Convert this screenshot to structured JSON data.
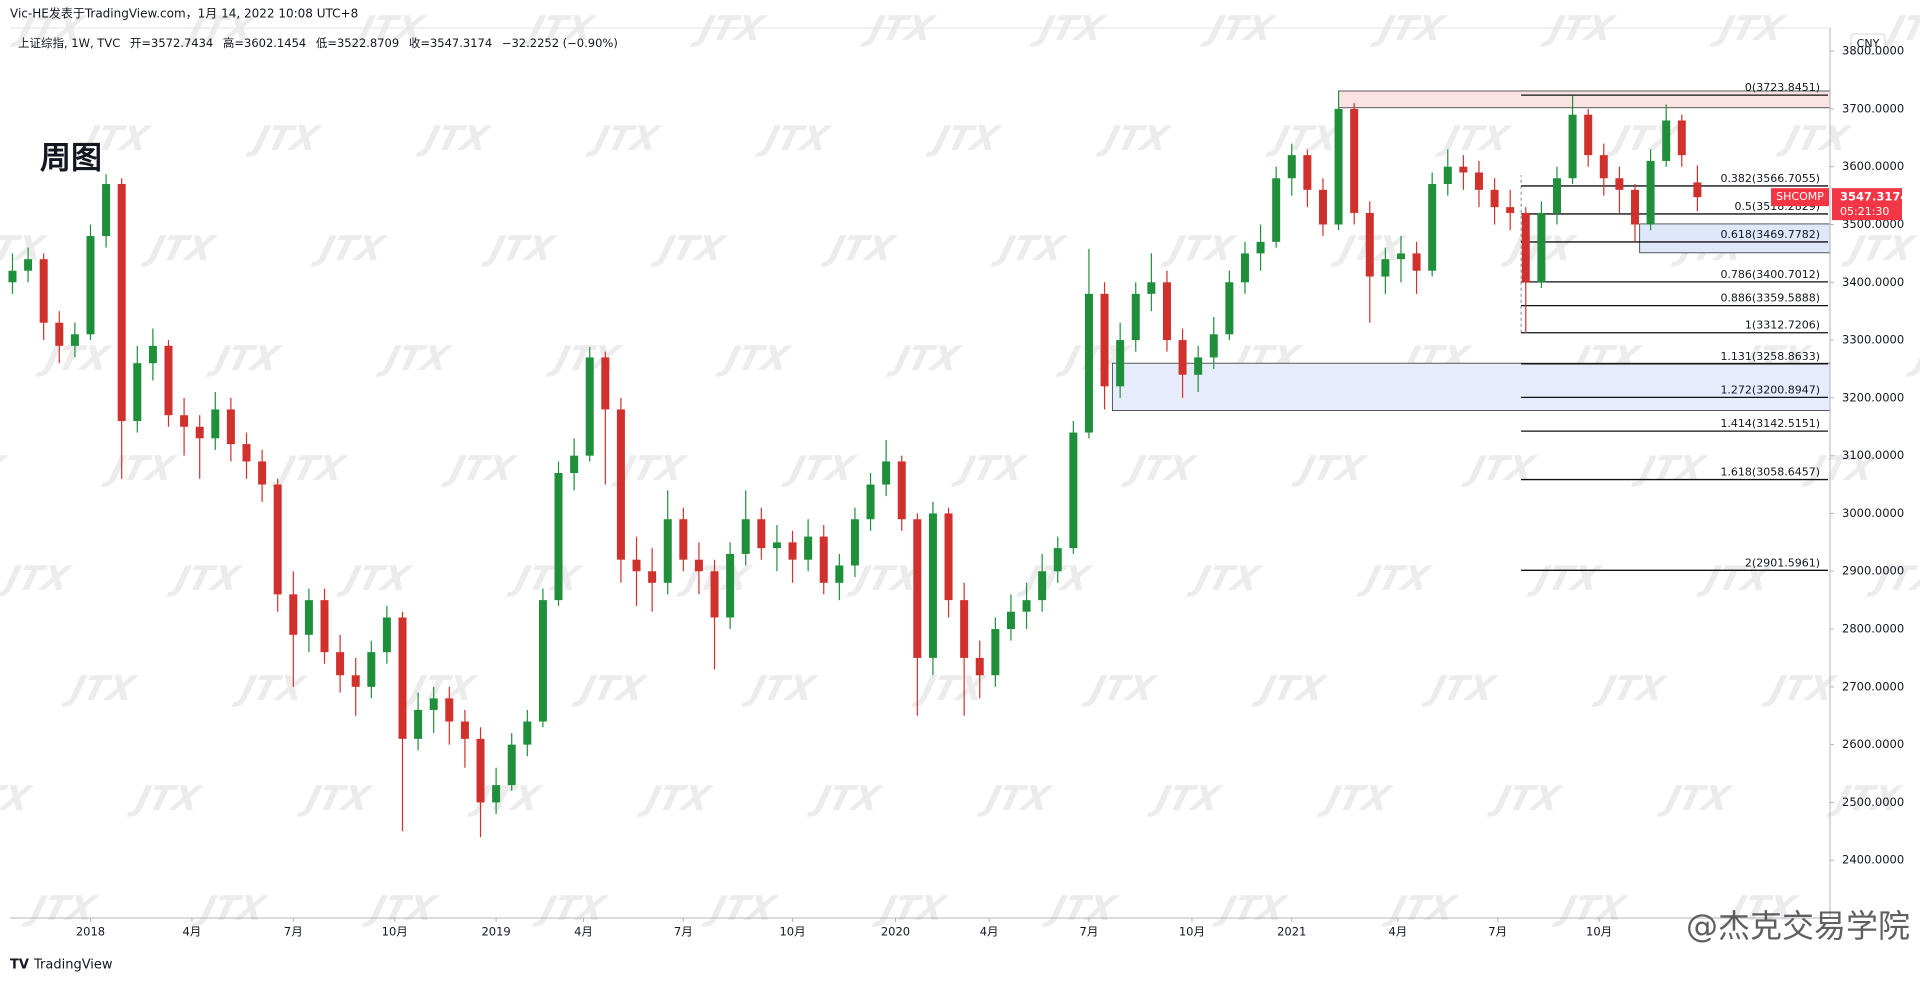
{
  "chart_data": {
    "type": "candlestick",
    "header": "Vic-HE发表于TradingView.com，1月 14, 2022 10:08 UTC+8",
    "legend": {
      "symbol": "上证综指, 1W, TVC",
      "open": "开=3572.7434",
      "high": "高=3602.1454",
      "low": "低=3522.8709",
      "close": "收=3547.3174",
      "change": "−32.2252 (−0.90%)"
    },
    "title": "周图",
    "currency": "CNY",
    "brand": "TradingView",
    "watermark": "JTX",
    "signature": "@杰克交易学院",
    "up_color": "#1f8f3c",
    "down_color": "#d0312d",
    "candles": [
      [
        3400,
        3450,
        3380,
        3420
      ],
      [
        3420,
        3460,
        3400,
        3440
      ],
      [
        3440,
        3450,
        3300,
        3330
      ],
      [
        3330,
        3350,
        3260,
        3290
      ],
      [
        3290,
        3330,
        3270,
        3310
      ],
      [
        3310,
        3500,
        3300,
        3480
      ],
      [
        3480,
        3587,
        3460,
        3570
      ],
      [
        3570,
        3580,
        3060,
        3160
      ],
      [
        3160,
        3290,
        3140,
        3260
      ],
      [
        3260,
        3320,
        3230,
        3290
      ],
      [
        3290,
        3300,
        3150,
        3170
      ],
      [
        3170,
        3200,
        3100,
        3150
      ],
      [
        3150,
        3170,
        3060,
        3130
      ],
      [
        3130,
        3210,
        3110,
        3180
      ],
      [
        3180,
        3200,
        3090,
        3120
      ],
      [
        3120,
        3140,
        3060,
        3090
      ],
      [
        3090,
        3110,
        3020,
        3050
      ],
      [
        3050,
        3060,
        2830,
        2860
      ],
      [
        2860,
        2900,
        2700,
        2790
      ],
      [
        2790,
        2870,
        2760,
        2850
      ],
      [
        2850,
        2870,
        2740,
        2760
      ],
      [
        2760,
        2790,
        2690,
        2720
      ],
      [
        2720,
        2750,
        2650,
        2700
      ],
      [
        2700,
        2780,
        2680,
        2760
      ],
      [
        2760,
        2840,
        2740,
        2820
      ],
      [
        2820,
        2830,
        2450,
        2610
      ],
      [
        2610,
        2690,
        2590,
        2660
      ],
      [
        2660,
        2700,
        2620,
        2680
      ],
      [
        2680,
        2700,
        2600,
        2640
      ],
      [
        2640,
        2660,
        2560,
        2610
      ],
      [
        2610,
        2630,
        2440,
        2500
      ],
      [
        2500,
        2560,
        2480,
        2530
      ],
      [
        2530,
        2620,
        2520,
        2600
      ],
      [
        2600,
        2660,
        2580,
        2640
      ],
      [
        2640,
        2870,
        2630,
        2850
      ],
      [
        2850,
        3090,
        2840,
        3070
      ],
      [
        3070,
        3130,
        3040,
        3100
      ],
      [
        3100,
        3288,
        3090,
        3270
      ],
      [
        3270,
        3280,
        3050,
        3180
      ],
      [
        3180,
        3200,
        2880,
        2920
      ],
      [
        2920,
        2960,
        2840,
        2900
      ],
      [
        2900,
        2940,
        2830,
        2880
      ],
      [
        2880,
        3040,
        2860,
        2990
      ],
      [
        2990,
        3010,
        2900,
        2920
      ],
      [
        2920,
        2950,
        2860,
        2900
      ],
      [
        2900,
        2920,
        2730,
        2820
      ],
      [
        2820,
        2950,
        2800,
        2930
      ],
      [
        2930,
        3040,
        2910,
        2990
      ],
      [
        2990,
        3010,
        2920,
        2940
      ],
      [
        2940,
        2980,
        2900,
        2950
      ],
      [
        2950,
        2970,
        2880,
        2920
      ],
      [
        2920,
        2990,
        2900,
        2960
      ],
      [
        2960,
        2980,
        2860,
        2880
      ],
      [
        2880,
        2930,
        2850,
        2910
      ],
      [
        2910,
        3010,
        2890,
        2990
      ],
      [
        2990,
        3070,
        2970,
        3050
      ],
      [
        3050,
        3127,
        3030,
        3090
      ],
      [
        3090,
        3100,
        2970,
        2990
      ],
      [
        2990,
        3000,
        2650,
        2750
      ],
      [
        2750,
        3020,
        2720,
        3000
      ],
      [
        3000,
        3010,
        2820,
        2850
      ],
      [
        2850,
        2880,
        2650,
        2750
      ],
      [
        2750,
        2780,
        2680,
        2720
      ],
      [
        2720,
        2820,
        2700,
        2800
      ],
      [
        2800,
        2860,
        2780,
        2830
      ],
      [
        2830,
        2880,
        2800,
        2850
      ],
      [
        2850,
        2930,
        2830,
        2900
      ],
      [
        2900,
        2960,
        2880,
        2940
      ],
      [
        2940,
        3160,
        2930,
        3140
      ],
      [
        3140,
        3458,
        3130,
        3380
      ],
      [
        3380,
        3400,
        3180,
        3220
      ],
      [
        3220,
        3330,
        3200,
        3300
      ],
      [
        3300,
        3400,
        3280,
        3380
      ],
      [
        3380,
        3450,
        3350,
        3400
      ],
      [
        3400,
        3420,
        3280,
        3300
      ],
      [
        3300,
        3320,
        3200,
        3240
      ],
      [
        3240,
        3290,
        3210,
        3270
      ],
      [
        3270,
        3340,
        3250,
        3310
      ],
      [
        3310,
        3420,
        3300,
        3400
      ],
      [
        3400,
        3470,
        3380,
        3450
      ],
      [
        3450,
        3500,
        3420,
        3470
      ],
      [
        3470,
        3600,
        3460,
        3580
      ],
      [
        3580,
        3640,
        3550,
        3620
      ],
      [
        3620,
        3630,
        3530,
        3560
      ],
      [
        3560,
        3580,
        3480,
        3500
      ],
      [
        3500,
        3731,
        3490,
        3700
      ],
      [
        3700,
        3710,
        3500,
        3520
      ],
      [
        3520,
        3540,
        3330,
        3410
      ],
      [
        3410,
        3460,
        3380,
        3440
      ],
      [
        3440,
        3480,
        3400,
        3450
      ],
      [
        3450,
        3470,
        3380,
        3420
      ],
      [
        3420,
        3590,
        3410,
        3570
      ],
      [
        3570,
        3630,
        3550,
        3600
      ],
      [
        3600,
        3620,
        3560,
        3590
      ],
      [
        3590,
        3610,
        3530,
        3560
      ],
      [
        3560,
        3580,
        3500,
        3530
      ],
      [
        3530,
        3560,
        3490,
        3520
      ],
      [
        3520,
        3530,
        3312,
        3400
      ],
      [
        3400,
        3540,
        3390,
        3520
      ],
      [
        3520,
        3600,
        3500,
        3580
      ],
      [
        3580,
        3723,
        3570,
        3690
      ],
      [
        3690,
        3700,
        3600,
        3620
      ],
      [
        3620,
        3640,
        3550,
        3580
      ],
      [
        3580,
        3600,
        3520,
        3560
      ],
      [
        3560,
        3570,
        3470,
        3500
      ],
      [
        3500,
        3630,
        3490,
        3610
      ],
      [
        3610,
        3708,
        3600,
        3680
      ],
      [
        3680,
        3690,
        3600,
        3620
      ],
      [
        3572.7434,
        3602.1454,
        3522.8709,
        3547.3174
      ]
    ],
    "xlim": [
      -0.8,
      116.5
    ],
    "xticks": [
      {
        "value": 5,
        "label": "2018"
      },
      {
        "value": 11.5,
        "label": "4月"
      },
      {
        "value": 18,
        "label": "7月"
      },
      {
        "value": 24.5,
        "label": "10月"
      },
      {
        "value": 31,
        "label": "2019"
      },
      {
        "value": 36.6,
        "label": "4月"
      },
      {
        "value": 43,
        "label": "7月"
      },
      {
        "value": 50,
        "label": "10月"
      },
      {
        "value": 56.6,
        "label": "2020"
      },
      {
        "value": 62.6,
        "label": "4月"
      },
      {
        "value": 69,
        "label": "7月"
      },
      {
        "value": 75.6,
        "label": "10月"
      },
      {
        "value": 82,
        "label": "2021"
      },
      {
        "value": 88.8,
        "label": "4月"
      },
      {
        "value": 95.2,
        "label": "7月"
      },
      {
        "value": 101.7,
        "label": "10月"
      }
    ],
    "ylim": [
      2300,
      3840
    ],
    "yticks": [
      {
        "value": 2400,
        "label": "2400.0000"
      },
      {
        "value": 2500,
        "label": "2500.0000"
      },
      {
        "value": 2600,
        "label": "2600.0000"
      },
      {
        "value": 2700,
        "label": "2700.0000"
      },
      {
        "value": 2800,
        "label": "2800.0000"
      },
      {
        "value": 2900,
        "label": "2900.0000"
      },
      {
        "value": 3000,
        "label": "3000.0000"
      },
      {
        "value": 3100,
        "label": "3100.0000"
      },
      {
        "value": 3200,
        "label": "3200.0000"
      },
      {
        "value": 3300,
        "label": "3300.0000"
      },
      {
        "value": 3400,
        "label": "3400.0000"
      },
      {
        "value": 3500,
        "label": "3500.0000"
      },
      {
        "value": 3600,
        "label": "3600.0000"
      },
      {
        "value": 3700,
        "label": "3700.0000"
      },
      {
        "value": 3800,
        "label": "3800.0000"
      }
    ],
    "fib_start": 96.7,
    "fib_levels": [
      {
        "value": 3723.8451,
        "label": "0(3723.8451)"
      },
      {
        "value": 3566.7055,
        "label": "0.382(3566.7055)"
      },
      {
        "value": 3518.2829,
        "label": "0.5(3518.2829)"
      },
      {
        "value": 3469.7782,
        "label": "0.618(3469.7782)"
      },
      {
        "value": 3400.7012,
        "label": "0.786(3400.7012)"
      },
      {
        "value": 3359.5888,
        "label": "0.886(3359.5888)"
      },
      {
        "value": 3312.7206,
        "label": "1(3312.7206)"
      },
      {
        "value": 3258.8633,
        "label": "1.131(3258.8633)"
      },
      {
        "value": 3200.8947,
        "label": "1.272(3200.8947)"
      },
      {
        "value": 3142.5151,
        "label": "1.414(3142.5151)"
      },
      {
        "value": 3058.6457,
        "label": "1.618(3058.6457)"
      },
      {
        "value": 2901.5961,
        "label": "2(2901.5961)"
      }
    ],
    "zones": [
      {
        "start": 85,
        "top": 3731,
        "bottom": 3702,
        "color": "#fbe3e3"
      },
      {
        "start": 104.3,
        "top": 3501,
        "bottom": 3451,
        "color": "#dfe7fb"
      },
      {
        "start": 70.5,
        "top": 3260,
        "bottom": 3178,
        "color": "#e6ecfc"
      }
    ],
    "last_price": {
      "symbol": "SHCOMP",
      "price": "3547.3174",
      "countdown": "05:21:30"
    }
  }
}
